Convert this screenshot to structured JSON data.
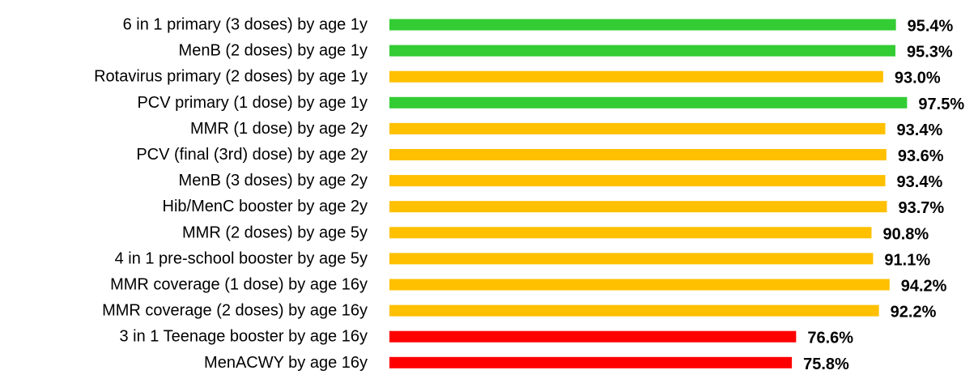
{
  "chart_data": {
    "type": "bar",
    "orientation": "horizontal",
    "title": "",
    "xlabel": "",
    "ylabel": "",
    "xlim": [
      0,
      100
    ],
    "grid": false,
    "legend": "none",
    "value_suffix": "%",
    "value_decimals": 1,
    "status_colors": {
      "green": "#33cc33",
      "amber": "#ffc000",
      "red": "#ff0000"
    },
    "categories": [
      "6 in 1 primary (3 doses) by age 1y",
      "MenB (2 doses) by age 1y",
      "Rotavirus primary (2 doses) by age 1y",
      "PCV primary (1 dose) by age 1y",
      "MMR (1 dose) by age 2y",
      "PCV (final (3rd) dose) by age 2y",
      "MenB (3 doses) by age 2y",
      "Hib/MenC booster by age 2y",
      "MMR (2 doses) by age 5y",
      "4 in 1 pre-school booster by age 5y",
      "MMR coverage (1 dose) by age 16y",
      "MMR coverage (2 doses) by age 16y",
      "3 in 1 Teenage booster by age 16y",
      "MenACWY by age 16y"
    ],
    "values": [
      95.4,
      95.3,
      93.0,
      97.5,
      93.4,
      93.6,
      93.4,
      93.7,
      90.8,
      91.1,
      94.2,
      92.2,
      76.6,
      75.8
    ],
    "status": [
      "green",
      "green",
      "amber",
      "green",
      "amber",
      "amber",
      "amber",
      "amber",
      "amber",
      "amber",
      "amber",
      "amber",
      "red",
      "red"
    ]
  }
}
